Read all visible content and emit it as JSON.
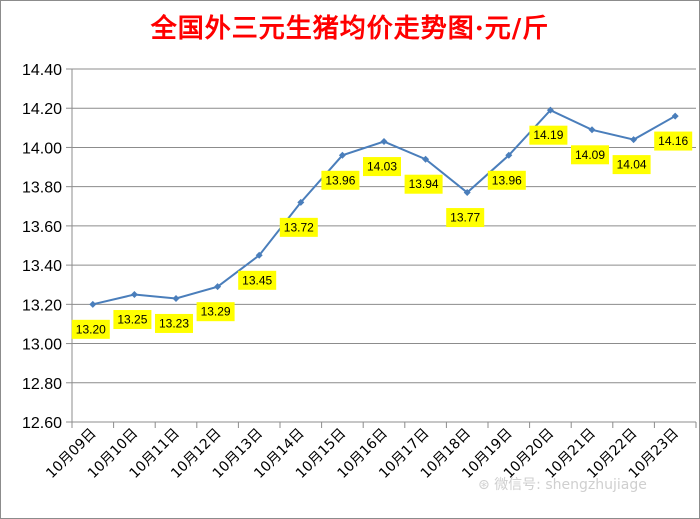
{
  "chart_data": {
    "type": "line",
    "title": "全国外三元生猪均价走势图·元/斤",
    "categories": [
      "10月09日",
      "10月10日",
      "10月11日",
      "10月12日",
      "10月13日",
      "10月14日",
      "10月15日",
      "10月16日",
      "10月17日",
      "10月18日",
      "10月19日",
      "10月20日",
      "10月21日",
      "10月22日",
      "10月23日"
    ],
    "series": [
      {
        "values": [
          13.2,
          13.25,
          13.23,
          13.29,
          13.45,
          13.72,
          13.96,
          14.03,
          13.94,
          13.77,
          13.96,
          14.19,
          14.09,
          14.04,
          14.16
        ]
      }
    ],
    "ylim": [
      12.6,
      14.4
    ],
    "yticks": [
      12.6,
      12.8,
      13.0,
      13.2,
      13.4,
      13.6,
      13.8,
      14.0,
      14.2,
      14.4
    ],
    "grid": true,
    "legend": "none",
    "colors": {
      "line": "#4a7ebb",
      "label_bg": "#ffff00",
      "title": "#ff0000",
      "grid": "#8c8c8c"
    },
    "watermark": "微信号: shengzhujiage"
  }
}
